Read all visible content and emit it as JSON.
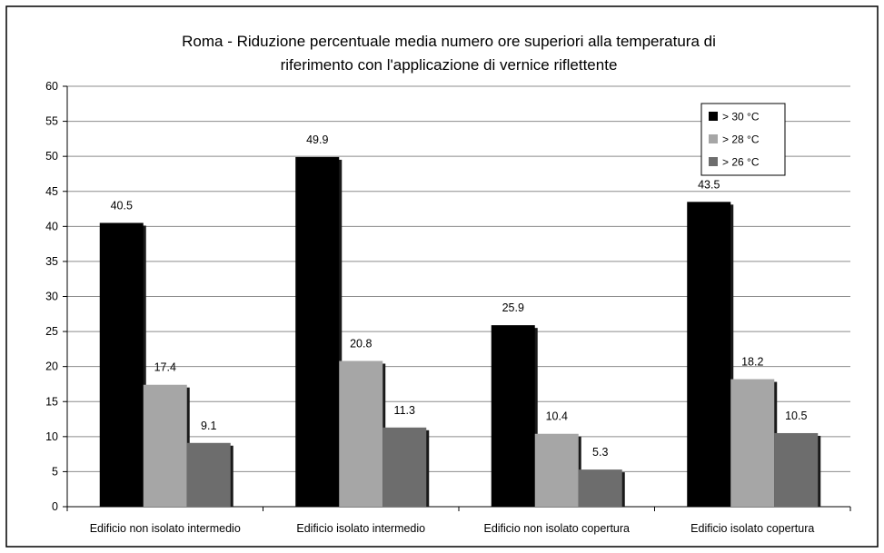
{
  "chart_data": {
    "type": "bar",
    "title": "Roma - Riduzione percentuale media numero ore superiori alla temperatura di riferimento con l'applicazione di vernice riflettente",
    "title_lines": [
      "Roma - Riduzione percentuale media numero ore superiori alla temperatura di",
      "riferimento con l'applicazione di vernice riflettente"
    ],
    "xlabel": "",
    "ylabel": "",
    "categories": [
      "Edificio non isolato intermedio",
      "Edificio isolato intermedio",
      "Edificio non isolato copertura",
      "Edificio isolato copertura"
    ],
    "series": [
      {
        "name": "> 30 °C",
        "color": "#000000",
        "values": [
          40.5,
          49.9,
          25.9,
          43.5
        ],
        "labels": [
          "40.5",
          "49.9",
          "25.9",
          "43.5"
        ]
      },
      {
        "name": "> 28 °C",
        "color": "#a6a6a6",
        "values": [
          17.4,
          20.8,
          10.4,
          18.2
        ],
        "labels": [
          "17.4",
          "20.8",
          "10.4",
          "18.2"
        ]
      },
      {
        "name": "> 26 °C",
        "color": "#6d6d6d",
        "values": [
          9.1,
          11.3,
          5.3,
          10.5
        ],
        "labels": [
          "9.1",
          "11.3",
          "5.3",
          "10.5"
        ]
      }
    ],
    "ylim": [
      0,
      60
    ],
    "yticks": [
      "0",
      "5",
      "10",
      "15",
      "20",
      "25",
      "30",
      "35",
      "40",
      "45",
      "50",
      "55",
      "60"
    ],
    "grid": true,
    "legend_position": "top-right",
    "shadow_color": "#1a1a1a"
  }
}
